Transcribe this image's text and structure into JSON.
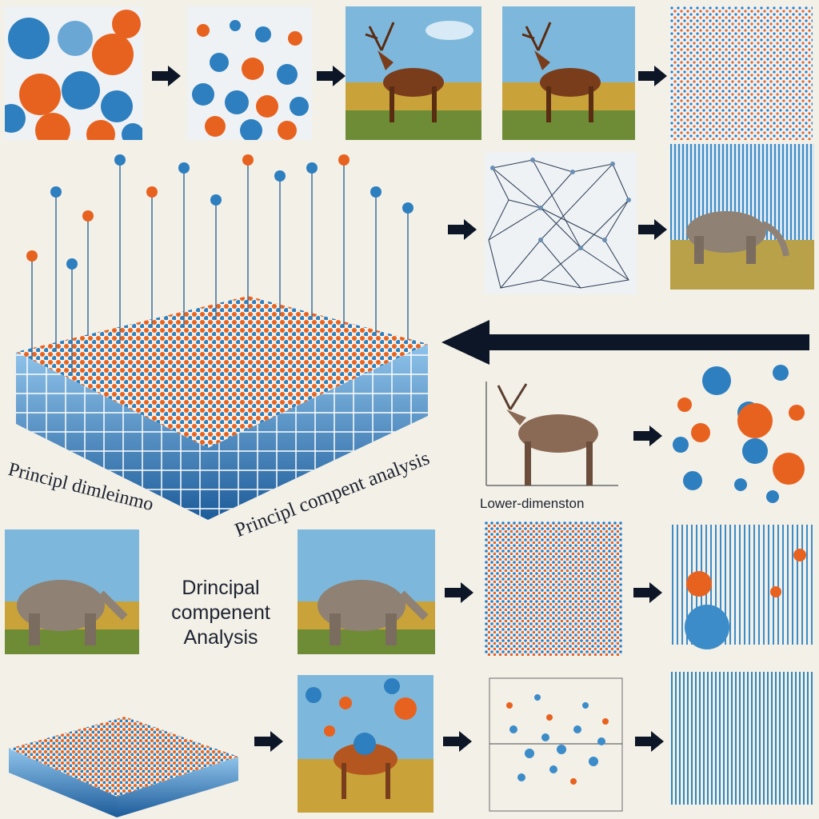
{
  "labels": {
    "pca_left": "Principl dimleinmo",
    "pca_right": "Principl compent analysis",
    "lower_dim": "Lower-dimenston",
    "title_line1": "Drincipal",
    "title_line2": "compenent",
    "title_line3": "Analysis"
  },
  "colors": {
    "blue": "#2e86c1",
    "orange": "#e8621f",
    "background": "#f3f0e8",
    "arrow": "#0d1626"
  },
  "icons": [
    "arrow-right-icon",
    "arrow-left-icon"
  ]
}
